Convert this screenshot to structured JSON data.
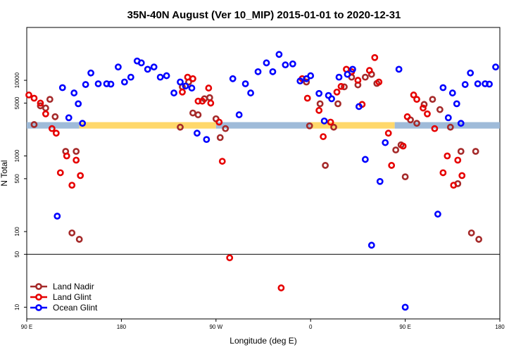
{
  "chart_data": {
    "type": "scatter",
    "title": "35N-40N August (Ver 10_MIP)   2015-01-01 to 2020-12-31",
    "xlabel": "Longitude (deg E)",
    "ylabel": "N Total",
    "x_scale": "linear",
    "y_scale": "log",
    "xlim": [
      90,
      540
    ],
    "ylim": [
      7,
      50000
    ],
    "x_ticks": [
      {
        "value": 90,
        "label": "90 E"
      },
      {
        "value": 180,
        "label": "180"
      },
      {
        "value": 270,
        "label": "90 W"
      },
      {
        "value": 360,
        "label": "0"
      },
      {
        "value": 450,
        "label": "90 E"
      },
      {
        "value": 540,
        "label": "180"
      }
    ],
    "y_ticks": [
      {
        "value": 10,
        "label": "10"
      },
      {
        "value": 50,
        "label": "50"
      },
      {
        "value": 100,
        "label": "100"
      },
      {
        "value": 500,
        "label": "500"
      },
      {
        "value": 1000,
        "label": "1000"
      },
      {
        "value": 5000,
        "label": "5000"
      },
      {
        "value": 10000,
        "label": "10000"
      }
    ],
    "reference_line": {
      "y": 50,
      "color": "#000000"
    },
    "band": {
      "y_min": 2300,
      "y_max": 2800,
      "x_min": 90,
      "x_max": 540,
      "colors": [
        "#ffd86b",
        "#9fbbd9"
      ]
    },
    "legend": {
      "position": "bottom-left"
    },
    "grid": false,
    "series": [
      {
        "name": "Land Nadir",
        "color": "#a52a2a",
        "points": [
          [
            97,
            2600
          ],
          [
            103,
            4600
          ],
          [
            108,
            4300
          ],
          [
            112,
            5600
          ],
          [
            117,
            3300
          ],
          [
            127,
            1150
          ],
          [
            133,
            96
          ],
          [
            137,
            1150
          ],
          [
            140,
            79
          ],
          [
            236,
            2400
          ],
          [
            238,
            8200
          ],
          [
            244,
            9500
          ],
          [
            248,
            3700
          ],
          [
            253,
            3500
          ],
          [
            259,
            5700
          ],
          [
            264,
            5900
          ],
          [
            270,
            3100
          ],
          [
            274,
            1750
          ],
          [
            279,
            2300
          ],
          [
            356,
            9500
          ],
          [
            359,
            2500
          ],
          [
            369,
            4900
          ],
          [
            374,
            750
          ],
          [
            382,
            2400
          ],
          [
            386,
            4900
          ],
          [
            392,
            8200
          ],
          [
            399,
            11000
          ],
          [
            405,
            8700
          ],
          [
            412,
            11000
          ],
          [
            418,
            12000
          ],
          [
            423,
            9100
          ],
          [
            441,
            1200
          ],
          [
            446,
            1400
          ],
          [
            450,
            530
          ],
          [
            455,
            3000
          ],
          [
            461,
            2700
          ],
          [
            468,
            4800
          ],
          [
            476,
            5600
          ],
          [
            483,
            4100
          ],
          [
            493,
            2400
          ],
          [
            500,
            430
          ],
          [
            503,
            1150
          ],
          [
            513,
            96
          ],
          [
            517,
            1150
          ],
          [
            520,
            79
          ]
        ]
      },
      {
        "name": "Land Glint",
        "color": "#e60000",
        "points": [
          [
            92,
            6400
          ],
          [
            97,
            5800
          ],
          [
            103,
            5000
          ],
          [
            108,
            3600
          ],
          [
            114,
            2300
          ],
          [
            118,
            2000
          ],
          [
            122,
            600
          ],
          [
            128,
            1000
          ],
          [
            133,
            410
          ],
          [
            137,
            880
          ],
          [
            141,
            550
          ],
          [
            238,
            7000
          ],
          [
            243,
            11000
          ],
          [
            248,
            10500
          ],
          [
            253,
            5300
          ],
          [
            257,
            5300
          ],
          [
            263,
            7900
          ],
          [
            265,
            5000
          ],
          [
            273,
            2800
          ],
          [
            276,
            850
          ],
          [
            283,
            45
          ],
          [
            332,
            18
          ],
          [
            352,
            10500
          ],
          [
            357,
            5800
          ],
          [
            368,
            4000
          ],
          [
            372,
            1800
          ],
          [
            379,
            2800
          ],
          [
            385,
            7000
          ],
          [
            389,
            8300
          ],
          [
            394,
            14000
          ],
          [
            399,
            13000
          ],
          [
            405,
            10000
          ],
          [
            409,
            4800
          ],
          [
            416,
            13500
          ],
          [
            421,
            20000
          ],
          [
            425,
            9500
          ],
          [
            434,
            2000
          ],
          [
            437,
            750
          ],
          [
            448,
            1350
          ],
          [
            452,
            3300
          ],
          [
            458,
            6400
          ],
          [
            461,
            5600
          ],
          [
            467,
            4300
          ],
          [
            471,
            3600
          ],
          [
            478,
            2300
          ],
          [
            486,
            600
          ],
          [
            490,
            1000
          ],
          [
            496,
            410
          ],
          [
            500,
            880
          ],
          [
            504,
            550
          ]
        ]
      },
      {
        "name": "Ocean Glint",
        "color": "#0000ff",
        "points": [
          [
            119,
            160
          ],
          [
            124,
            8000
          ],
          [
            130,
            3200
          ],
          [
            135,
            6800
          ],
          [
            139,
            4900
          ],
          [
            143,
            2700
          ],
          [
            146,
            8800
          ],
          [
            151,
            12500
          ],
          [
            158,
            9000
          ],
          [
            166,
            9000
          ],
          [
            170,
            8900
          ],
          [
            177,
            15000
          ],
          [
            183,
            9500
          ],
          [
            189,
            11000
          ],
          [
            195,
            18000
          ],
          [
            199,
            17000
          ],
          [
            205,
            14000
          ],
          [
            211,
            15000
          ],
          [
            217,
            11000
          ],
          [
            223,
            11500
          ],
          [
            230,
            6800
          ],
          [
            236,
            9500
          ],
          [
            241,
            8400
          ],
          [
            247,
            7900
          ],
          [
            252,
            2000
          ],
          [
            261,
            1650
          ],
          [
            286,
            10500
          ],
          [
            292,
            3500
          ],
          [
            298,
            9000
          ],
          [
            303,
            6800
          ],
          [
            310,
            13000
          ],
          [
            318,
            17000
          ],
          [
            324,
            13000
          ],
          [
            330,
            22000
          ],
          [
            336,
            16000
          ],
          [
            343,
            16500
          ],
          [
            350,
            9800
          ],
          [
            356,
            10500
          ],
          [
            360,
            11500
          ],
          [
            368,
            6700
          ],
          [
            373,
            2900
          ],
          [
            377,
            6300
          ],
          [
            380,
            5700
          ],
          [
            387,
            11000
          ],
          [
            395,
            12000
          ],
          [
            400,
            14000
          ],
          [
            406,
            4500
          ],
          [
            412,
            900
          ],
          [
            418,
            66
          ],
          [
            426,
            460
          ],
          [
            431,
            1500
          ],
          [
            444,
            14000
          ],
          [
            450,
            10
          ],
          [
            481,
            170
          ],
          [
            486,
            8000
          ],
          [
            491,
            3200
          ],
          [
            495,
            6800
          ],
          [
            499,
            4900
          ],
          [
            503,
            2700
          ],
          [
            507,
            8800
          ],
          [
            512,
            12500
          ],
          [
            519,
            9000
          ],
          [
            526,
            9000
          ],
          [
            530,
            8900
          ],
          [
            536,
            15000
          ],
          [
            542,
            9500
          ]
        ]
      }
    ]
  }
}
